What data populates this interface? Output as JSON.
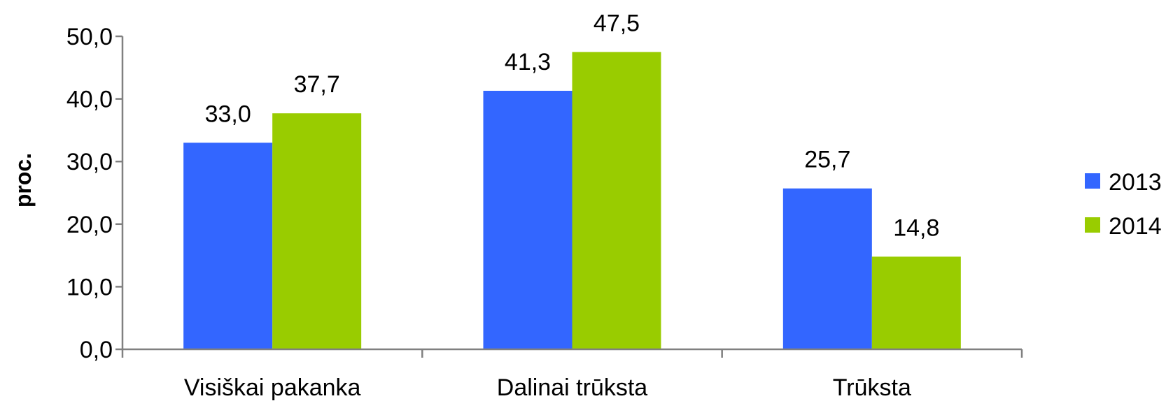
{
  "chart_data": {
    "type": "bar",
    "title": "",
    "xlabel": "",
    "ylabel": "proc.",
    "ylim": [
      0,
      50
    ],
    "yticks": [
      "0,0",
      "10,0",
      "20,0",
      "30,0",
      "40,0",
      "50,0"
    ],
    "ytick_values": [
      0,
      10,
      20,
      30,
      40,
      50
    ],
    "categories": [
      "Visiškai pakanka",
      "Dalinai trūksta",
      "Trūksta"
    ],
    "series": [
      {
        "name": "2013",
        "color": "#3366ff",
        "values": [
          33.0,
          41.3,
          25.7
        ],
        "labels": [
          "33,0",
          "41,3",
          "25,7"
        ]
      },
      {
        "name": "2014",
        "color": "#99cc00",
        "values": [
          37.7,
          47.5,
          14.8
        ],
        "labels": [
          "37,7",
          "47,5",
          "14,8"
        ]
      }
    ],
    "grid": false,
    "legend": "right"
  }
}
